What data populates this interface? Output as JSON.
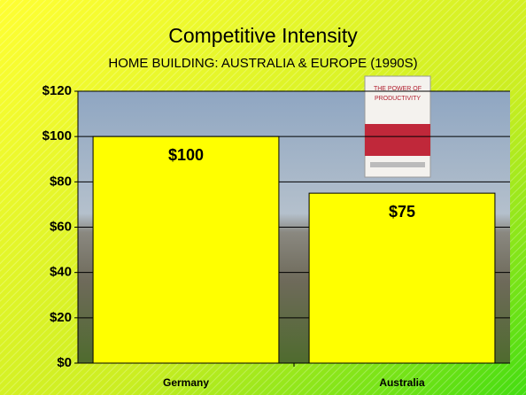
{
  "chart_data": {
    "type": "bar",
    "title": "Competitive Intensity",
    "subtitle": "HOME BUILDING: AUSTRALIA & EUROPE (1990S)",
    "annotations": [
      "THE POWER OF",
      "PRODUCTIVITY"
    ],
    "categories": [
      "Germany",
      "Australia"
    ],
    "values": [
      100,
      75
    ],
    "value_labels": [
      "$100",
      "$75"
    ],
    "color": "#ffff00",
    "ylim": [
      0,
      120
    ],
    "yticks": [
      {
        "value": 0,
        "label": "$0"
      },
      {
        "value": 20,
        "label": "$20"
      },
      {
        "value": 40,
        "label": "$40"
      },
      {
        "value": 60,
        "label": "$60"
      },
      {
        "value": 80,
        "label": "$80"
      },
      {
        "value": 100,
        "label": "$100"
      },
      {
        "value": 120,
        "label": "$120"
      }
    ],
    "grid": true
  }
}
